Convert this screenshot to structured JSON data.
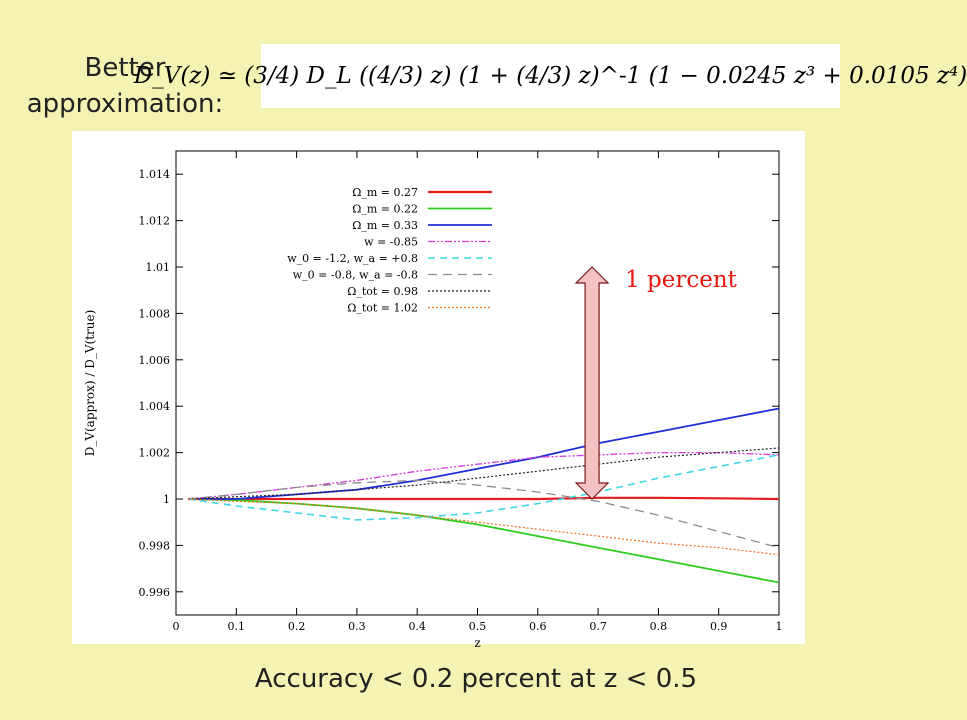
{
  "heading": {
    "line1": "Better",
    "line2": "approximation:"
  },
  "formula": {
    "text": "D_V(z) ≃ (3/4) D_L ((4/3) z) (1 + (4/3) z)^-1 (1 − 0.0245 z³ + 0.0105 z⁴)"
  },
  "caption": "Accuracy < 0.2 percent at z < 0.5",
  "annotation": {
    "label": "1 percent",
    "arrow_from": 1.0,
    "arrow_to": 1.01,
    "arrow_z": 0.69,
    "label_color": "#e8160c",
    "arrow_fill": "#f4c2c2"
  },
  "chart_data": {
    "type": "line",
    "xlabel": "z",
    "ylabel": "D_V(approx) / D_V(true)",
    "xlim": [
      0,
      1
    ],
    "ylim": [
      0.995,
      1.015
    ],
    "xticks": [
      "0",
      "0.1",
      "0.2",
      "0.3",
      "0.4",
      "0.5",
      "0.6",
      "0.7",
      "0.8",
      "0.9",
      "1"
    ],
    "yticks": [
      "0.996",
      "0.998",
      "1",
      "1.002",
      "1.004",
      "1.006",
      "1.008",
      "1.01",
      "1.012",
      "1.014"
    ],
    "grid": false,
    "legend_position": "top-left",
    "x": [
      0.02,
      0.1,
      0.2,
      0.3,
      0.4,
      0.5,
      0.6,
      0.7,
      0.8,
      0.9,
      1.0
    ],
    "series": [
      {
        "name": "Ω_m = 0.27",
        "color": "#e41a1c",
        "dash": "",
        "width": 2.2,
        "values": [
          1.0,
          1.0,
          1.0,
          1.0,
          1.0,
          1.0,
          1.0,
          1.00005,
          1.00005,
          1.00003,
          1.0
        ]
      },
      {
        "name": "Ω_m = 0.22",
        "color": "#2ecc1f",
        "dash": "",
        "width": 1.8,
        "values": [
          1.0,
          0.99995,
          0.9998,
          0.9996,
          0.9993,
          0.9989,
          0.9984,
          0.9979,
          0.9974,
          0.9969,
          0.9964
        ]
      },
      {
        "name": "Ω_m = 0.33",
        "color": "#1f2fd6",
        "dash": "",
        "width": 1.8,
        "values": [
          1.0,
          1.0,
          1.0002,
          1.0004,
          1.0008,
          1.0013,
          1.0018,
          1.0024,
          1.0029,
          1.0034,
          1.0039
        ]
      },
      {
        "name": "w = -0.85",
        "color": "#d63ad6",
        "dash": "7 2 2 2 2 2",
        "width": 1.3,
        "values": [
          1.0,
          1.0002,
          1.0005,
          1.0008,
          1.0012,
          1.0015,
          1.0018,
          1.0019,
          1.002,
          1.002,
          1.0019
        ]
      },
      {
        "name": "w_0 = -1.2, w_a = +0.8",
        "color": "#3fd7e8",
        "dash": "7 5",
        "width": 1.6,
        "values": [
          1.0,
          0.9997,
          0.9994,
          0.9991,
          0.9992,
          0.9994,
          0.9998,
          1.0003,
          1.0009,
          1.0014,
          1.0019
        ]
      },
      {
        "name": "w_0 = -0.8, w_a = -0.8",
        "color": "#8c8c8c",
        "dash": "9 6",
        "width": 1.3,
        "values": [
          1.0,
          1.0002,
          1.0005,
          1.0007,
          1.0008,
          1.0006,
          1.0003,
          0.9999,
          0.9993,
          0.9986,
          0.9979
        ]
      },
      {
        "name": "Ω_tot = 0.98",
        "color": "#222222",
        "dash": "2 2",
        "width": 1.2,
        "values": [
          1.0,
          1.0001,
          1.0002,
          1.0004,
          1.0006,
          1.0009,
          1.0012,
          1.0015,
          1.0018,
          1.002,
          1.0022
        ]
      },
      {
        "name": "Ω_tot = 1.02",
        "color": "#f07020",
        "dash": "2 2",
        "width": 1.2,
        "values": [
          1.0,
          0.9999,
          0.9998,
          0.9996,
          0.9993,
          0.999,
          0.9987,
          0.9984,
          0.9981,
          0.9979,
          0.9976
        ]
      }
    ]
  }
}
